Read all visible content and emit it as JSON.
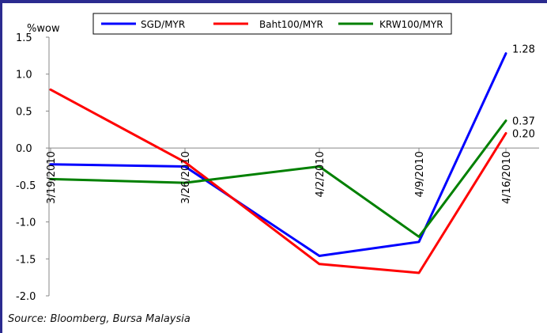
{
  "chart_data": {
    "type": "line",
    "ylabel": "%wow",
    "categories": [
      "3/19/2010",
      "3/26/2010",
      "4/2/2010",
      "4/9/2010",
      "4/16/2010"
    ],
    "ylim": [
      -2.0,
      1.5
    ],
    "ytick_labels": [
      "1.5",
      "1.0",
      "0.5",
      "0.0",
      "-0.5",
      "-1.0",
      "-1.5",
      "-2.0"
    ],
    "yticks": [
      1.5,
      1.0,
      0.5,
      0.0,
      -0.5,
      -1.0,
      -1.5,
      -2.0
    ],
    "legend_position": "top",
    "series": [
      {
        "name": "SGD/MYR",
        "color": "#0000ff",
        "values": [
          -0.22,
          -0.25,
          -1.46,
          -1.27,
          1.28
        ]
      },
      {
        "name": "Baht100/MYR",
        "color": "#ff0000",
        "values": [
          0.79,
          -0.19,
          -1.57,
          -1.69,
          0.2
        ]
      },
      {
        "name": "KRW100/MYR",
        "color": "#008000",
        "values": [
          -0.42,
          -0.47,
          -0.25,
          -1.2,
          0.37
        ]
      }
    ],
    "end_labels": [
      "1.28",
      "0.20",
      "0.37"
    ]
  },
  "source_note": "Source: Bloomberg, Bursa Malaysia",
  "frame_color": "#2b2b8f"
}
